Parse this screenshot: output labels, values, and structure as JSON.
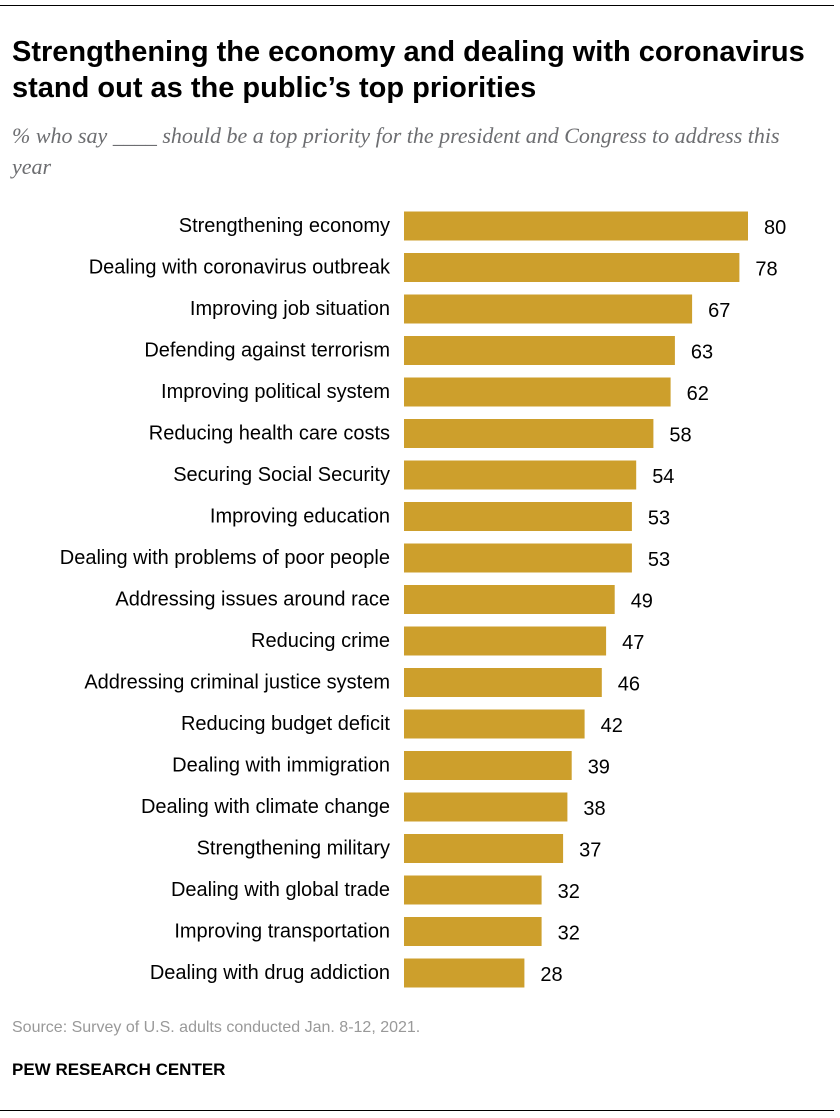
{
  "title": "Strengthening the economy and dealing with coronavirus stand out as the public’s top priorities",
  "subtitle": "% who say ____ should be a top priority for the president and Congress to address this year",
  "source": "Source: Survey of U.S. adults conducted Jan. 8-12, 2021.",
  "organization": "PEW RESEARCH CENTER",
  "colors": {
    "bar": "#cd9f2c"
  },
  "chart_data": {
    "type": "bar",
    "orientation": "horizontal",
    "categories": [
      "Strengthening economy",
      "Dealing with coronavirus outbreak",
      "Improving job situation",
      "Defending against terrorism",
      "Improving political system",
      "Reducing health care costs",
      "Securing Social Security",
      "Improving education",
      "Dealing with problems of poor people",
      "Addressing issues around race",
      "Reducing crime",
      "Addressing criminal justice system",
      "Reducing budget deficit",
      "Dealing with immigration",
      "Dealing with climate change",
      "Strengthening military",
      "Dealing with global trade",
      "Improving transportation",
      "Dealing with drug addiction"
    ],
    "values": [
      80,
      78,
      67,
      63,
      62,
      58,
      54,
      53,
      53,
      49,
      47,
      46,
      42,
      39,
      38,
      37,
      32,
      32,
      28
    ],
    "xlim": [
      0,
      100
    ],
    "grid": false,
    "legend": "none",
    "data_labels": true
  }
}
